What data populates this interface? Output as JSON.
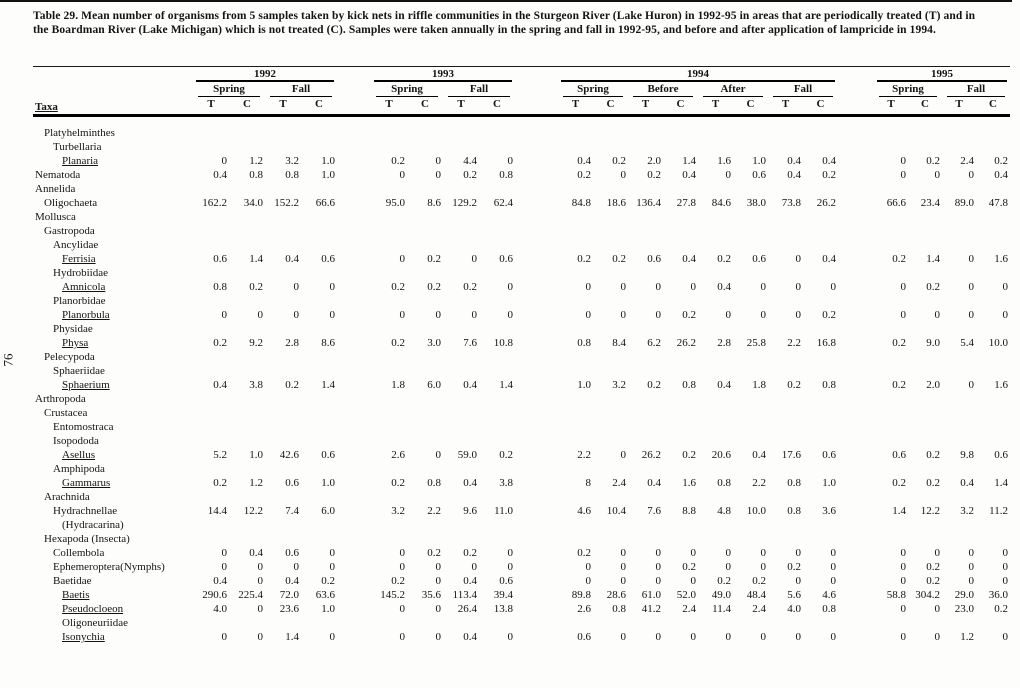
{
  "page_number": "76",
  "caption": "Table 29.  Mean number of organisms from 5 samples taken by kick nets in riffle communities in the Sturgeon River (Lake Huron) in 1992-95 in areas that are periodically treated (T) and in the Boardman River (Lake Michigan) which is not treated (C).  Samples were taken annually in the spring and fall in 1992-95, and before and after application of lampricide in 1994.",
  "colors": {
    "ink": "#141414",
    "paper": "#fdfdfc"
  },
  "table": {
    "taxa_header": "Taxa",
    "treatment_labels": [
      "T",
      "C"
    ],
    "years": [
      {
        "label": "1992",
        "seasons": [
          "Spring",
          "Fall"
        ]
      },
      {
        "label": "1993",
        "seasons": [
          "Spring",
          "Fall"
        ]
      },
      {
        "label": "1994",
        "seasons": [
          "Spring",
          "Before",
          "After",
          "Fall"
        ]
      },
      {
        "label": "1995",
        "seasons": [
          "Spring",
          "Fall"
        ]
      }
    ],
    "rows": [
      {
        "taxon": "Platyhelminthes",
        "indent": 1,
        "underline": false,
        "values": null
      },
      {
        "taxon": "Turbellaria",
        "indent": 2,
        "underline": false,
        "values": null
      },
      {
        "taxon": "Planaria",
        "indent": 3,
        "underline": true,
        "values": [
          "0",
          "1.2",
          "3.2",
          "1.0",
          "0.2",
          "0",
          "4.4",
          "0",
          "0.4",
          "0.2",
          "2.0",
          "1.4",
          "1.6",
          "1.0",
          "0.4",
          "0.4",
          "0",
          "0.2",
          "2.4",
          "0.2"
        ]
      },
      {
        "taxon": "Nematoda",
        "indent": 0,
        "underline": false,
        "values": [
          "0.4",
          "0.8",
          "0.8",
          "1.0",
          "0",
          "0",
          "0.2",
          "0.8",
          "0.2",
          "0",
          "0.2",
          "0.4",
          "0",
          "0.6",
          "0.4",
          "0.2",
          "0",
          "0",
          "0",
          "0.4"
        ]
      },
      {
        "taxon": "Annelida",
        "indent": 0,
        "underline": false,
        "values": null
      },
      {
        "taxon": "Oligochaeta",
        "indent": 1,
        "underline": false,
        "values": [
          "162.2",
          "34.0",
          "152.2",
          "66.6",
          "95.0",
          "8.6",
          "129.2",
          "62.4",
          "84.8",
          "18.6",
          "136.4",
          "27.8",
          "84.6",
          "38.0",
          "73.8",
          "26.2",
          "66.6",
          "23.4",
          "89.0",
          "47.8"
        ]
      },
      {
        "taxon": "Mollusca",
        "indent": 0,
        "underline": false,
        "values": null
      },
      {
        "taxon": "Gastropoda",
        "indent": 1,
        "underline": false,
        "values": null
      },
      {
        "taxon": "Ancylidae",
        "indent": 2,
        "underline": false,
        "values": null
      },
      {
        "taxon": "Ferrisia",
        "indent": 3,
        "underline": true,
        "values": [
          "0.6",
          "1.4",
          "0.4",
          "0.6",
          "0",
          "0.2",
          "0",
          "0.6",
          "0.2",
          "0.2",
          "0.6",
          "0.4",
          "0.2",
          "0.6",
          "0",
          "0.4",
          "0.2",
          "1.4",
          "0",
          "1.6"
        ]
      },
      {
        "taxon": "Hydrobiidae",
        "indent": 2,
        "underline": false,
        "values": null
      },
      {
        "taxon": "Amnicola",
        "indent": 3,
        "underline": true,
        "values": [
          "0.8",
          "0.2",
          "0",
          "0",
          "0.2",
          "0.2",
          "0.2",
          "0",
          "0",
          "0",
          "0",
          "0",
          "0.4",
          "0",
          "0",
          "0",
          "0",
          "0.2",
          "0",
          "0"
        ]
      },
      {
        "taxon": "Planorbidae",
        "indent": 2,
        "underline": false,
        "values": null
      },
      {
        "taxon": "Planorbula",
        "indent": 3,
        "underline": true,
        "values": [
          "0",
          "0",
          "0",
          "0",
          "0",
          "0",
          "0",
          "0",
          "0",
          "0",
          "0",
          "0.2",
          "0",
          "0",
          "0",
          "0.2",
          "0",
          "0",
          "0",
          "0"
        ]
      },
      {
        "taxon": "Physidae",
        "indent": 2,
        "underline": false,
        "values": null
      },
      {
        "taxon": "Physa",
        "indent": 3,
        "underline": true,
        "values": [
          "0.2",
          "9.2",
          "2.8",
          "8.6",
          "0.2",
          "3.0",
          "7.6",
          "10.8",
          "0.8",
          "8.4",
          "6.2",
          "26.2",
          "2.8",
          "25.8",
          "2.2",
          "16.8",
          "0.2",
          "9.0",
          "5.4",
          "10.0"
        ]
      },
      {
        "taxon": "Pelecypoda",
        "indent": 1,
        "underline": false,
        "values": null
      },
      {
        "taxon": "Sphaeriidae",
        "indent": 2,
        "underline": false,
        "values": null
      },
      {
        "taxon": "Sphaerium",
        "indent": 3,
        "underline": true,
        "values": [
          "0.4",
          "3.8",
          "0.2",
          "1.4",
          "1.8",
          "6.0",
          "0.4",
          "1.4",
          "1.0",
          "3.2",
          "0.2",
          "0.8",
          "0.4",
          "1.8",
          "0.2",
          "0.8",
          "0.2",
          "2.0",
          "0",
          "1.6"
        ]
      },
      {
        "taxon": "Arthropoda",
        "indent": 0,
        "underline": false,
        "values": null
      },
      {
        "taxon": "Crustacea",
        "indent": 1,
        "underline": false,
        "values": null
      },
      {
        "taxon": "Entomostraca",
        "indent": 2,
        "underline": false,
        "values": null
      },
      {
        "taxon": "Isopododa",
        "indent": 2,
        "underline": false,
        "values": null
      },
      {
        "taxon": "Asellus",
        "indent": 3,
        "underline": true,
        "values": [
          "5.2",
          "1.0",
          "42.6",
          "0.6",
          "2.6",
          "0",
          "59.0",
          "0.2",
          "2.2",
          "0",
          "26.2",
          "0.2",
          "20.6",
          "0.4",
          "17.6",
          "0.6",
          "0.6",
          "0.2",
          "9.8",
          "0.6"
        ]
      },
      {
        "taxon": "Amphipoda",
        "indent": 2,
        "underline": false,
        "values": null
      },
      {
        "taxon": "Gammarus",
        "indent": 3,
        "underline": true,
        "values": [
          "0.2",
          "1.2",
          "0.6",
          "1.0",
          "0.2",
          "0.8",
          "0.4",
          "3.8",
          "8",
          "2.4",
          "0.4",
          "1.6",
          "0.8",
          "2.2",
          "0.8",
          "1.0",
          "0.2",
          "0.2",
          "0.4",
          "1.4"
        ]
      },
      {
        "taxon": "Arachnida",
        "indent": 1,
        "underline": false,
        "values": null
      },
      {
        "taxon": "Hydrachnellae",
        "indent": 2,
        "underline": false,
        "values": [
          "14.4",
          "12.2",
          "7.4",
          "6.0",
          "3.2",
          "2.2",
          "9.6",
          "11.0",
          "4.6",
          "10.4",
          "7.6",
          "8.8",
          "4.8",
          "10.0",
          "0.8",
          "3.6",
          "1.4",
          "12.2",
          "3.2",
          "11.2"
        ]
      },
      {
        "taxon": "(Hydracarina)",
        "indent": 3,
        "underline": false,
        "values": null
      },
      {
        "taxon": "Hexapoda (Insecta)",
        "indent": 1,
        "underline": false,
        "values": null
      },
      {
        "taxon": "Collembola",
        "indent": 2,
        "underline": false,
        "values": [
          "0",
          "0.4",
          "0.6",
          "0",
          "0",
          "0.2",
          "0.2",
          "0",
          "0.2",
          "0",
          "0",
          "0",
          "0",
          "0",
          "0",
          "0",
          "0",
          "0",
          "0",
          "0"
        ]
      },
      {
        "taxon": "Ephemeroptera(Nymphs)",
        "indent": 2,
        "underline": false,
        "values": [
          "0",
          "0",
          "0",
          "0",
          "0",
          "0",
          "0",
          "0",
          "0",
          "0",
          "0",
          "0.2",
          "0",
          "0",
          "0.2",
          "0",
          "0",
          "0.2",
          "0",
          "0"
        ]
      },
      {
        "taxon": "Baetidae",
        "indent": 2,
        "underline": false,
        "values": [
          "0.4",
          "0",
          "0.4",
          "0.2",
          "0.2",
          "0",
          "0.4",
          "0.6",
          "0",
          "0",
          "0",
          "0",
          "0.2",
          "0.2",
          "0",
          "0",
          "0",
          "0.2",
          "0",
          "0"
        ]
      },
      {
        "taxon": "Baetis",
        "indent": 3,
        "underline": true,
        "values": [
          "290.6",
          "225.4",
          "72.0",
          "63.6",
          "145.2",
          "35.6",
          "113.4",
          "39.4",
          "89.8",
          "28.6",
          "61.0",
          "52.0",
          "49.0",
          "48.4",
          "5.6",
          "4.6",
          "58.8",
          "304.2",
          "29.0",
          "36.0"
        ]
      },
      {
        "taxon": "Pseudocloeon",
        "indent": 3,
        "underline": true,
        "values": [
          "4.0",
          "0",
          "23.6",
          "1.0",
          "0",
          "0",
          "26.4",
          "13.8",
          "2.6",
          "0.8",
          "41.2",
          "2.4",
          "11.4",
          "2.4",
          "4.0",
          "0.8",
          "0",
          "0",
          "23.0",
          "0.2"
        ]
      },
      {
        "taxon": "Oligoneuriidae",
        "indent": 3,
        "underline": false,
        "values": null
      },
      {
        "taxon": "Isonychia",
        "indent": 3,
        "underline": true,
        "values": [
          "0",
          "0",
          "1.4",
          "0",
          "0",
          "0",
          "0.4",
          "0",
          "0.6",
          "0",
          "0",
          "0",
          "0",
          "0",
          "0",
          "0",
          "0",
          "0",
          "1.2",
          "0"
        ]
      }
    ]
  }
}
